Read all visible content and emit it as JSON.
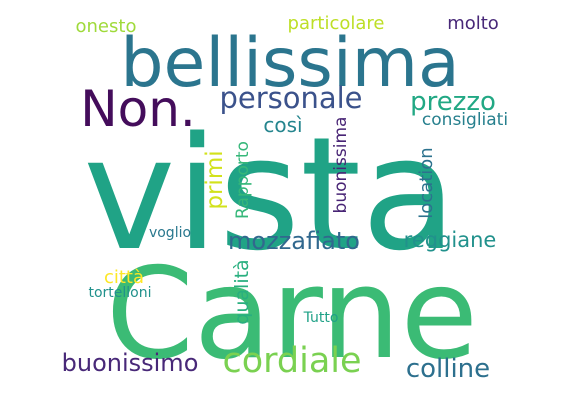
{
  "words": [
    {
      "text": "vista",
      "color": "#20a386"
    },
    {
      "text": "Carne",
      "color": "#3bbb75"
    },
    {
      "text": "bellissima",
      "color": "#2b758e"
    },
    {
      "text": "Non.",
      "color": "#440d5b"
    },
    {
      "text": "personale",
      "color": "#3b528b"
    },
    {
      "text": "prezzo",
      "color": "#22a884"
    },
    {
      "text": "cordiale",
      "color": "#7ad151"
    },
    {
      "text": "buonissimo",
      "color": "#482878"
    },
    {
      "text": "colline",
      "color": "#2d708e"
    },
    {
      "text": "mozzafiato",
      "color": "#31688e"
    },
    {
      "text": "reggiane",
      "color": "#21918c"
    },
    {
      "text": "consigliati",
      "color": "#27808e"
    },
    {
      "text": "così",
      "color": "#25858e"
    },
    {
      "text": "particolare",
      "color": "#bddf26"
    },
    {
      "text": "onesto",
      "color": "#9fda3a"
    },
    {
      "text": "molto",
      "color": "#482878"
    },
    {
      "text": "primi",
      "color": "#d2e21b"
    },
    {
      "text": "Rapporto",
      "color": "#35b779"
    },
    {
      "text": "buonissima",
      "color": "#482475"
    },
    {
      "text": "location",
      "color": "#2c728e"
    },
    {
      "text": "qualità",
      "color": "#29af7f"
    },
    {
      "text": "città",
      "color": "#fde725"
    },
    {
      "text": "voglio",
      "color": "#2a788e"
    },
    {
      "text": "tortelloni",
      "color": "#21918c"
    },
    {
      "text": "Tutto",
      "color": "#1fa187"
    }
  ]
}
